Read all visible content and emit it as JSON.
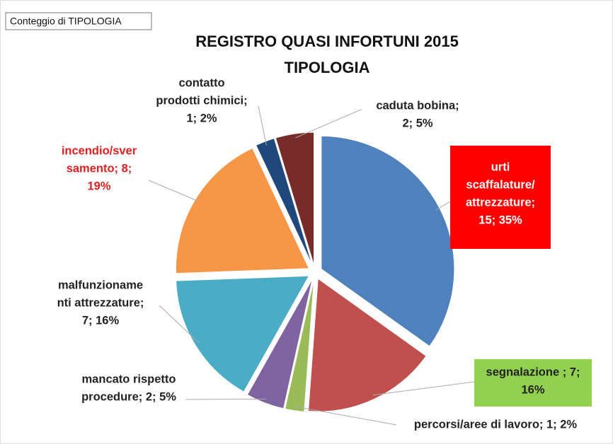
{
  "legend_box": "Conteggio di TIPOLOGIA",
  "chart_data": {
    "type": "pie",
    "title": "REGISTRO  QUASI INFORTUNI 2015",
    "subtitle": "TIPOLOGIA",
    "values": [
      15,
      7,
      1,
      2,
      7,
      8,
      1,
      2
    ],
    "value_labels": [
      [
        "urti",
        "scaffalature/",
        "attrezzature;",
        "15; 35%"
      ],
      [
        "segnalazione ; 7;",
        "16%"
      ],
      [
        "percorsi/aree di lavoro; 1; 2%"
      ],
      [
        "mancato rispetto",
        "procedure; 2; 5%"
      ],
      [
        "malfunzioname",
        "nti attrezzature;",
        "7; 16%"
      ],
      [
        "incendio/sver",
        "samento; 8;",
        "19%"
      ],
      [
        "contatto",
        "prodotti chimici;",
        "1; 2%"
      ],
      [
        "caduta bobina;",
        "2; 5%"
      ]
    ],
    "colors": [
      "#4f81bd",
      "#c0504d",
      "#9bbb59",
      "#8064a2",
      "#4bacc6",
      "#f79646",
      "#1f497d",
      "#772c2a"
    ]
  }
}
